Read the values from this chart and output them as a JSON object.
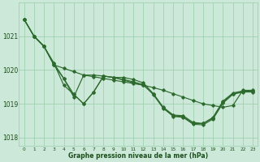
{
  "hours": [
    0,
    1,
    2,
    3,
    4,
    5,
    6,
    7,
    8,
    9,
    10,
    11,
    12,
    13,
    14,
    15,
    16,
    17,
    18,
    19,
    20,
    21,
    22,
    23
  ],
  "s1": [
    1021.5,
    1021.0,
    1020.7,
    1020.15,
    1020.05,
    1019.95,
    1019.85,
    1019.8,
    1019.75,
    1019.7,
    1019.65,
    1019.6,
    1019.55,
    1019.48,
    1019.4,
    1019.3,
    1019.2,
    1019.1,
    1019.0,
    1018.95,
    1018.9,
    1018.95,
    1019.4,
    1019.4
  ],
  "s2": [
    1021.5,
    1021.0,
    1020.7,
    1020.15,
    1019.75,
    1019.2,
    1019.85,
    1019.85,
    1019.82,
    1019.78,
    1019.7,
    1019.62,
    1019.55,
    1019.3,
    1018.88,
    1018.65,
    1018.62,
    1018.42,
    1018.42,
    1018.58,
    1019.05,
    1019.3,
    1019.37,
    1019.37
  ],
  "s3": [
    1021.5,
    1021.0,
    1020.7,
    1020.2,
    1019.75,
    1019.28,
    1019.0,
    1019.35,
    1019.82,
    1019.78,
    1019.72,
    1019.65,
    1019.57,
    1019.27,
    1018.87,
    1018.63,
    1018.6,
    1018.4,
    1018.38,
    1018.55,
    1019.02,
    1019.28,
    1019.35,
    1019.35
  ],
  "s4": [
    1021.5,
    1021.0,
    1020.7,
    1020.2,
    1019.55,
    1019.28,
    1019.0,
    1019.35,
    1019.82,
    1019.78,
    1019.78,
    1019.72,
    1019.62,
    1019.3,
    1018.9,
    1018.67,
    1018.65,
    1018.45,
    1018.42,
    1018.6,
    1019.08,
    1019.32,
    1019.38,
    1019.38
  ],
  "color": "#2d6a2d",
  "bg_color": "#cce8d8",
  "grid_color": "#99ccaa",
  "text_color": "#1a4d1a",
  "ylabel_ticks": [
    1018,
    1019,
    1020,
    1021
  ],
  "ylim": [
    1017.75,
    1022.0
  ],
  "xlim": [
    -0.5,
    23.5
  ],
  "xlabel": "Graphe pression niveau de la mer (hPa)"
}
